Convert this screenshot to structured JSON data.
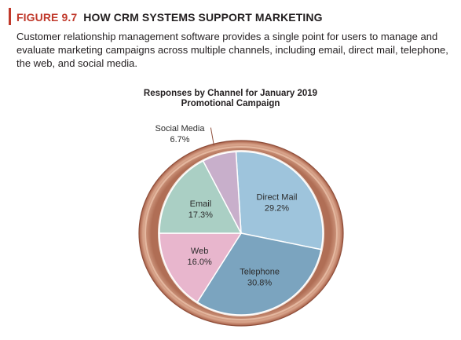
{
  "figure": {
    "label": "FIGURE 9.7",
    "title": "HOW CRM SYSTEMS SUPPORT MARKETING",
    "caption": "Customer relationship management software provides a single point for users to manage and evaluate marketing campaigns across multiple channels, including email, direct mail, telephone, the web, and social media."
  },
  "colors": {
    "accent": "#c0392b",
    "rim": "#c98d70"
  },
  "chart_data": {
    "type": "pie",
    "title": "Responses by Channel for January 2019",
    "subtitle": "Promotional Campaign",
    "slices": [
      {
        "name": "Direct Mail",
        "value": 29.2,
        "label": "29.2%",
        "color": "#9ec4dc"
      },
      {
        "name": "Telephone",
        "value": 30.8,
        "label": "30.8%",
        "color": "#7ba4bf"
      },
      {
        "name": "Web",
        "value": 16.0,
        "label": "16.0%",
        "color": "#e8b6cd"
      },
      {
        "name": "Email",
        "value": 17.3,
        "label": "17.3%",
        "color": "#aacfc4"
      },
      {
        "name": "Social Media",
        "value": 6.7,
        "label": "6.7%",
        "color": "#c8afcb"
      }
    ]
  }
}
